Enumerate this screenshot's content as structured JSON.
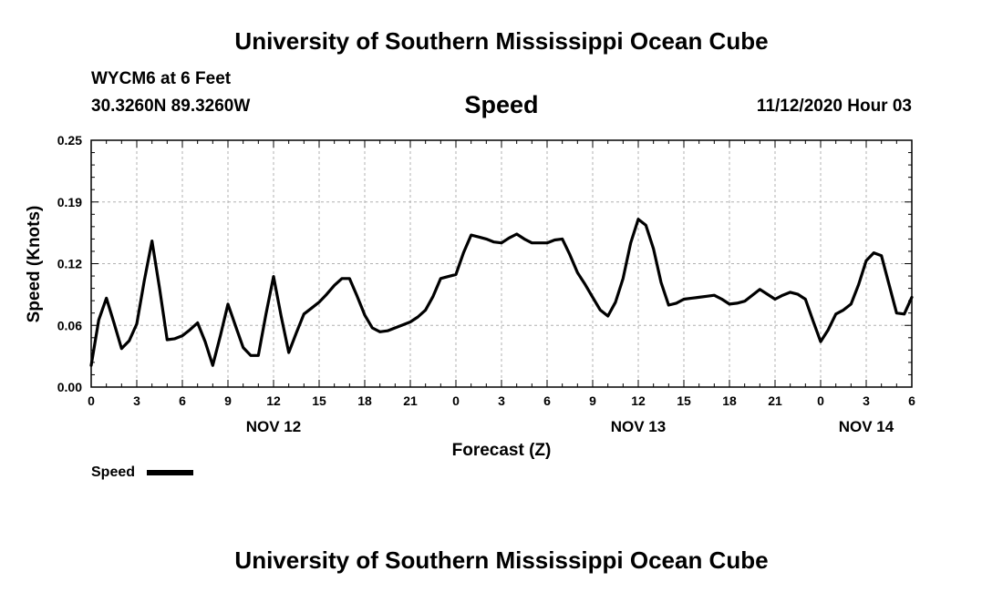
{
  "header": {
    "title": "University of Southern Mississippi Ocean Cube",
    "station": "WYCM6 at 6 Feet",
    "location": "30.3260N 89.3260W",
    "datetime": "11/12/2020 Hour 03"
  },
  "footer": {
    "title": "University of Southern Mississippi Ocean Cube"
  },
  "legend": {
    "label": "Speed",
    "color": "#000000"
  },
  "chart_data": {
    "type": "line",
    "title": "Speed",
    "ylabel": "Speed (Knots)",
    "xlabel": "Forecast (Z)",
    "ylim": [
      0,
      0.25
    ],
    "yticks": [
      "0.00",
      "0.06",
      "0.12",
      "0.19",
      "0.25"
    ],
    "ytick_values": [
      0,
      0.0625,
      0.125,
      0.1875,
      0.25
    ],
    "xlim": [
      0,
      54
    ],
    "xticks": [
      {
        "hour": 0,
        "label": "0"
      },
      {
        "hour": 3,
        "label": "3"
      },
      {
        "hour": 6,
        "label": "6"
      },
      {
        "hour": 9,
        "label": "9"
      },
      {
        "hour": 12,
        "label": "12"
      },
      {
        "hour": 15,
        "label": "15"
      },
      {
        "hour": 18,
        "label": "18"
      },
      {
        "hour": 21,
        "label": "21"
      },
      {
        "hour": 24,
        "label": "0"
      },
      {
        "hour": 27,
        "label": "3"
      },
      {
        "hour": 30,
        "label": "6"
      },
      {
        "hour": 33,
        "label": "9"
      },
      {
        "hour": 36,
        "label": "12"
      },
      {
        "hour": 39,
        "label": "15"
      },
      {
        "hour": 42,
        "label": "18"
      },
      {
        "hour": 45,
        "label": "21"
      },
      {
        "hour": 48,
        "label": "0"
      },
      {
        "hour": 51,
        "label": "3"
      },
      {
        "hour": 54,
        "label": "6"
      }
    ],
    "day_labels": [
      {
        "hour": 12,
        "label": "NOV 12"
      },
      {
        "hour": 36,
        "label": "NOV 13"
      },
      {
        "hour": 51,
        "label": "NOV 14"
      }
    ],
    "grid": true,
    "series": [
      {
        "name": "Speed",
        "x": [
          0,
          0.5,
          1,
          1.5,
          2,
          2.5,
          3,
          3.5,
          4,
          4.5,
          5,
          5.5,
          6,
          6.5,
          7,
          7.5,
          8,
          8.5,
          9,
          9.5,
          10,
          10.5,
          11,
          11.5,
          12,
          12.5,
          13,
          13.5,
          14,
          14.5,
          15,
          15.5,
          16,
          16.5,
          17,
          17.5,
          18,
          18.5,
          19,
          19.5,
          20,
          20.5,
          21,
          21.5,
          22,
          22.5,
          23,
          23.5,
          24,
          24.5,
          25,
          25.5,
          26,
          26.5,
          27,
          27.5,
          28,
          28.5,
          29,
          29.5,
          30,
          30.5,
          31,
          31.5,
          32,
          32.5,
          33,
          33.5,
          34,
          34.5,
          35,
          35.5,
          36,
          36.5,
          37,
          37.5,
          38,
          38.5,
          39,
          39.5,
          40,
          40.5,
          41,
          41.5,
          42,
          42.5,
          43,
          43.5,
          44,
          44.5,
          45,
          45.5,
          46,
          46.5,
          47,
          47.5,
          48,
          48.5,
          49,
          49.5,
          50,
          50.5,
          51,
          51.5,
          52,
          52.5,
          53,
          53.5,
          54
        ],
        "values": [
          0.022,
          0.068,
          0.09,
          0.065,
          0.039,
          0.047,
          0.064,
          0.108,
          0.148,
          0.1,
          0.048,
          0.049,
          0.052,
          0.058,
          0.065,
          0.046,
          0.022,
          0.052,
          0.084,
          0.062,
          0.04,
          0.032,
          0.032,
          0.074,
          0.112,
          0.072,
          0.035,
          0.055,
          0.074,
          0.08,
          0.086,
          0.094,
          0.103,
          0.11,
          0.11,
          0.092,
          0.073,
          0.06,
          0.056,
          0.057,
          0.06,
          0.063,
          0.066,
          0.071,
          0.078,
          0.092,
          0.11,
          0.112,
          0.114,
          0.136,
          0.154,
          0.152,
          0.15,
          0.147,
          0.146,
          0.151,
          0.155,
          0.15,
          0.146,
          0.146,
          0.146,
          0.149,
          0.15,
          0.134,
          0.116,
          0.104,
          0.091,
          0.078,
          0.072,
          0.086,
          0.11,
          0.146,
          0.17,
          0.164,
          0.14,
          0.106,
          0.083,
          0.085,
          0.089,
          0.09,
          0.091,
          0.092,
          0.093,
          0.089,
          0.084,
          0.085,
          0.087,
          0.093,
          0.099,
          0.094,
          0.089,
          0.093,
          0.096,
          0.094,
          0.089,
          0.067,
          0.046,
          0.058,
          0.074,
          0.078,
          0.084,
          0.104,
          0.128,
          0.136,
          0.133,
          0.104,
          0.075,
          0.074,
          0.091
        ]
      }
    ]
  }
}
